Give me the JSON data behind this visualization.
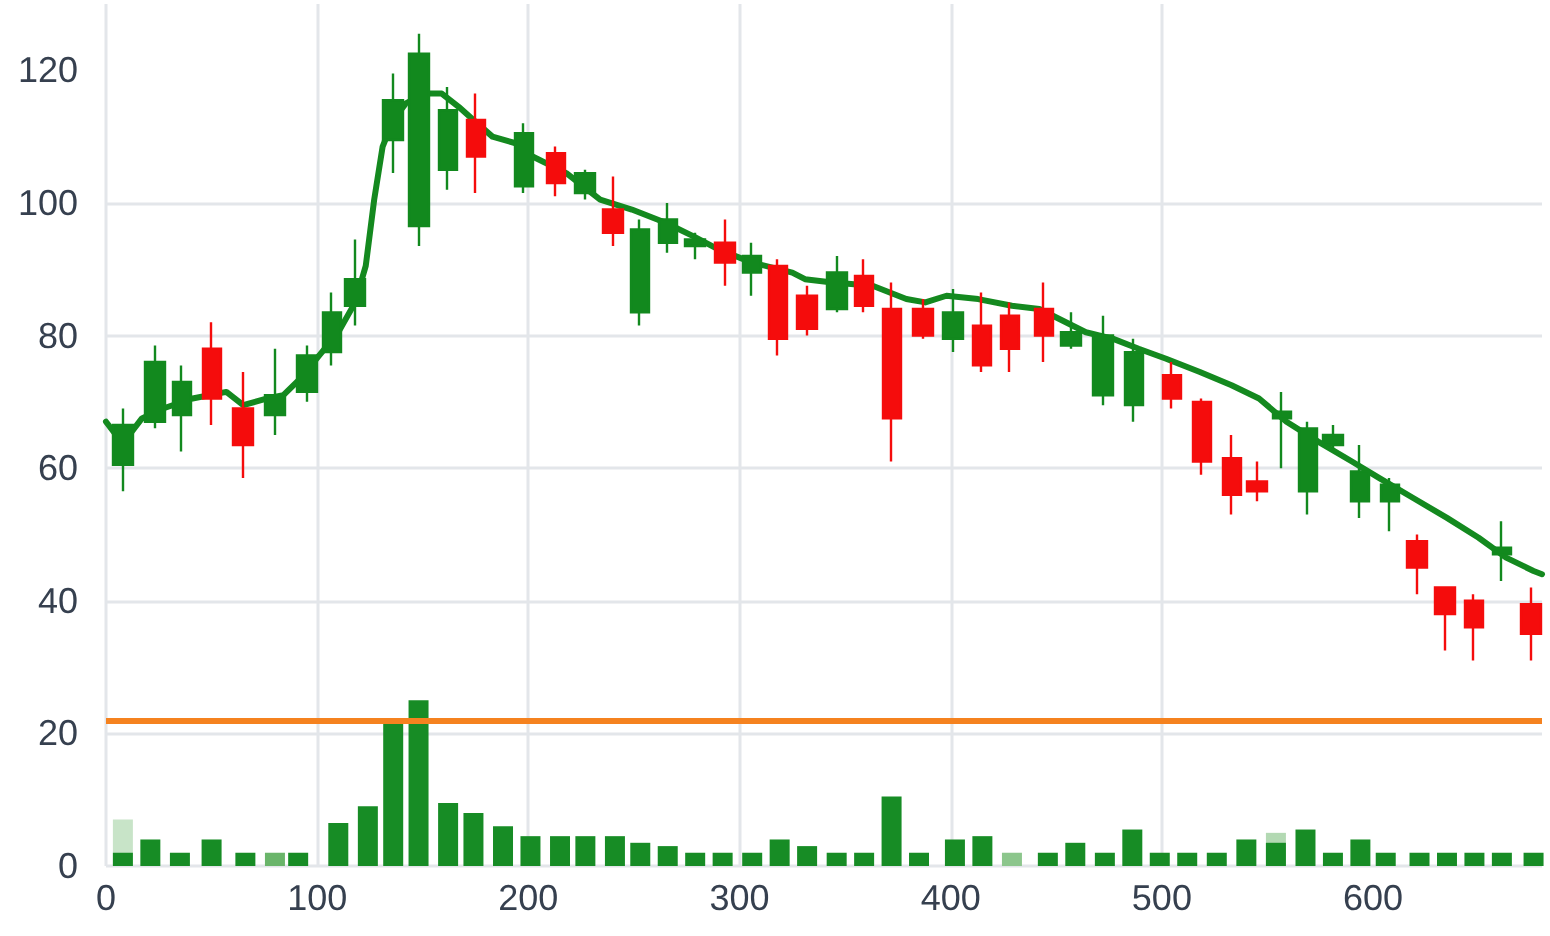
{
  "chart_data": {
    "type": "candlestick",
    "xlim": [
      0,
      680
    ],
    "xticks": [
      0,
      100,
      200,
      300,
      400,
      500,
      600
    ],
    "ylim": [
      0,
      130
    ],
    "yticks": [
      0,
      20,
      40,
      60,
      80,
      100,
      120
    ],
    "grid": true,
    "ref_lines": [
      {
        "axis": "y",
        "value": 22,
        "color": "#f5821f"
      }
    ],
    "series": [
      {
        "type": "bar",
        "x": [
          8,
          80,
          429,
          554
        ],
        "values": [
          7,
          2,
          2,
          5
        ],
        "colors": [
          "#c8e4c8",
          "#6ab56a",
          "#8cc68c",
          "#b3d9b3"
        ]
      },
      {
        "type": "bar",
        "color": "#178c25",
        "x": [
          8,
          21,
          35,
          50,
          66,
          91,
          110,
          124,
          136,
          148,
          162,
          174,
          188,
          201,
          215,
          227,
          241,
          253,
          266,
          279,
          292,
          306,
          319,
          332,
          346,
          359,
          372,
          385,
          402,
          415,
          446,
          459,
          473,
          486,
          499,
          512,
          526,
          540,
          554,
          568,
          581,
          594,
          606,
          622,
          635,
          648,
          661,
          676
        ],
        "values": [
          2,
          4,
          2,
          4,
          2,
          2,
          6.5,
          9,
          21.5,
          25,
          9.5,
          8,
          6,
          4.5,
          4.5,
          4.5,
          4.5,
          3.5,
          3,
          2,
          2,
          2,
          4,
          3,
          2,
          2,
          10.5,
          2,
          4,
          4.5,
          2,
          3.5,
          2,
          5.5,
          2,
          2,
          2,
          4,
          3.5,
          5.5,
          2,
          4,
          2,
          2,
          2,
          2,
          2,
          2
        ]
      },
      {
        "type": "line",
        "color": "#14891f",
        "x": [
          0,
          6,
          11,
          17,
          27,
          41,
          57,
          65,
          76,
          84,
          92,
          101,
          110,
          118,
          123,
          127,
          131,
          136,
          142,
          151,
          159,
          167,
          174,
          183,
          194,
          202,
          218,
          234,
          249,
          265,
          278,
          290,
          306,
          325,
          331,
          344,
          363,
          379,
          388,
          398,
          413,
          429,
          442,
          464,
          477,
          489,
          502,
          518,
          533,
          546,
          559,
          574,
          590,
          603,
          619,
          635,
          650,
          663,
          676,
          680
        ],
        "values": [
          67,
          64.5,
          65,
          67.5,
          69,
          70.5,
          71.5,
          69.5,
          70.5,
          71,
          73.5,
          77,
          80.5,
          85,
          90.5,
          100.5,
          108.5,
          112.5,
          115,
          116.5,
          116.5,
          114.5,
          112.5,
          110,
          109,
          107,
          104.5,
          100.5,
          99,
          97,
          95,
          93,
          91,
          89.5,
          88.5,
          88,
          87.5,
          85.5,
          85,
          86,
          85.5,
          84.5,
          84,
          80.5,
          79.5,
          78,
          76.5,
          74.5,
          72.5,
          70.5,
          67,
          64,
          61,
          58.5,
          55.5,
          52.5,
          49.5,
          46.5,
          44.5,
          44
        ]
      },
      {
        "x": [
          8,
          23,
          36,
          50,
          65,
          80,
          95,
          107,
          118,
          136,
          148,
          162,
          175,
          198,
          213,
          227,
          240,
          253,
          266,
          279,
          293,
          306,
          318,
          332,
          346,
          359,
          372,
          387,
          401,
          415,
          428,
          444,
          457,
          472,
          487,
          505,
          519,
          533,
          545,
          557,
          569,
          581,
          594,
          608,
          621,
          634,
          648,
          661,
          675
        ],
        "ohlc": [
          [
            60.5,
            69,
            56.5,
            66.5
          ],
          [
            67,
            78.5,
            66,
            76
          ],
          [
            68,
            75.5,
            62.5,
            73
          ],
          [
            78,
            82,
            66.5,
            70.5
          ],
          [
            69,
            74.5,
            58.5,
            63.5
          ],
          [
            68,
            78,
            65,
            71
          ],
          [
            71.5,
            78.5,
            70,
            77
          ],
          [
            77.5,
            86.5,
            75.5,
            83.5
          ],
          [
            84.5,
            94.5,
            81.5,
            88.5
          ],
          [
            109.5,
            119.5,
            104.5,
            115.5
          ],
          [
            96.5,
            125.5,
            93.5,
            122.5
          ],
          [
            105,
            117.5,
            102,
            114
          ],
          [
            112.5,
            116.5,
            101.5,
            107
          ],
          [
            102.5,
            112,
            101.5,
            110.5
          ],
          [
            107.5,
            108.5,
            101,
            103
          ],
          [
            101.5,
            105,
            100.5,
            104.5
          ],
          [
            99,
            104,
            93.5,
            95.5
          ],
          [
            83.5,
            97.5,
            81.5,
            96
          ],
          [
            94,
            100,
            92.5,
            97.5
          ],
          [
            93.5,
            95.5,
            91.5,
            94.5
          ],
          [
            94,
            97.5,
            87.5,
            91
          ],
          [
            89.5,
            94,
            86,
            92
          ],
          [
            90.5,
            91.5,
            77,
            79.5
          ],
          [
            86,
            87.5,
            80,
            81
          ],
          [
            84,
            92,
            83.5,
            89.5
          ],
          [
            89,
            91.5,
            83.5,
            84.5
          ],
          [
            84,
            88,
            61,
            67.5
          ],
          [
            84,
            85.5,
            79.5,
            80
          ],
          [
            79.5,
            87,
            77.5,
            83.5
          ],
          [
            81.5,
            86.5,
            74.5,
            75.5
          ],
          [
            83,
            85,
            74.5,
            78
          ],
          [
            84,
            88,
            76,
            80
          ],
          [
            78.5,
            83.5,
            78,
            80.5
          ],
          [
            71,
            83,
            69.5,
            80
          ],
          [
            69.5,
            79.5,
            67,
            77.5
          ],
          [
            74,
            76,
            69,
            70.5
          ],
          [
            70,
            70.5,
            59,
            61
          ],
          [
            61.5,
            65,
            53,
            56
          ],
          [
            58,
            61,
            55,
            56.5
          ],
          [
            67.5,
            71.5,
            60,
            68.5
          ],
          [
            56.5,
            67,
            53,
            66
          ],
          [
            63.5,
            66.5,
            63,
            65
          ],
          [
            55,
            63.5,
            52.5,
            59.5
          ],
          [
            55,
            58.5,
            50.5,
            57.5
          ],
          [
            49,
            50,
            41,
            45
          ],
          [
            42,
            42,
            32.5,
            38
          ],
          [
            40,
            41,
            31,
            36
          ],
          [
            47,
            52,
            43,
            48
          ],
          [
            39.5,
            42,
            31,
            35
          ]
        ],
        "colors": [
          "#12891e",
          "#12891e",
          "#12891e",
          "#f50c0c",
          "#f50c0c",
          "#12891e",
          "#12891e",
          "#12891e",
          "#12891e",
          "#12891e",
          "#12891e",
          "#12891e",
          "#f50c0c",
          "#12891e",
          "#f50c0c",
          "#12891e",
          "#f50c0c",
          "#12891e",
          "#12891e",
          "#12891e",
          "#f50c0c",
          "#12891e",
          "#f50c0c",
          "#f50c0c",
          "#12891e",
          "#f50c0c",
          "#f50c0c",
          "#f50c0c",
          "#12891e",
          "#f50c0c",
          "#f50c0c",
          "#f50c0c",
          "#12891e",
          "#12891e",
          "#12891e",
          "#f50c0c",
          "#f50c0c",
          "#f50c0c",
          "#f50c0c",
          "#12891e",
          "#12891e",
          "#12891e",
          "#12891e",
          "#12891e",
          "#f50c0c",
          "#f50c0c",
          "#f50c0c",
          "#12891e",
          "#f50c0c"
        ]
      }
    ]
  }
}
